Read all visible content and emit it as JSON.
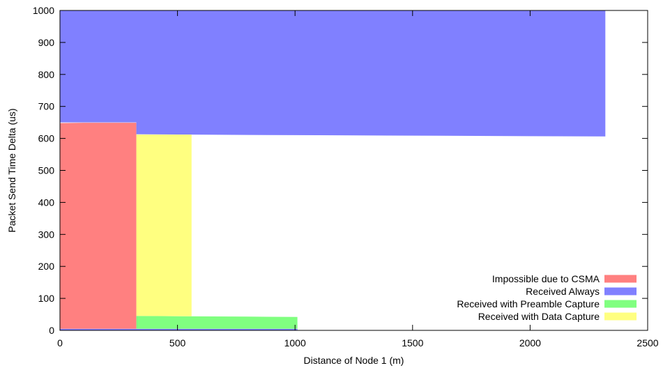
{
  "chart_data": {
    "type": "area",
    "title": "",
    "xlabel": "Distance of Node 1 (m)",
    "ylabel": "Packet Send Time Delta (us)",
    "xlim": [
      0,
      2500
    ],
    "ylim": [
      0,
      1000
    ],
    "x_ticks": [
      0,
      500,
      1000,
      1500,
      2000,
      2500
    ],
    "y_ticks": [
      0,
      100,
      200,
      300,
      400,
      500,
      600,
      700,
      800,
      900,
      1000
    ],
    "grid": false,
    "legend_position": "bottom-right",
    "series": [
      {
        "name": "Impossible due to CSMA",
        "color": "#ff8080",
        "x": [
          0,
          100,
          200,
          325,
          325
        ],
        "y_low": [
          5,
          5,
          5,
          5,
          5
        ],
        "y_high": [
          648,
          649,
          649,
          649,
          649
        ]
      },
      {
        "name": "Received Always",
        "color": "#8080ff",
        "x": [
          0,
          325,
          325,
          560,
          800,
          1100,
          1400,
          1700,
          2000,
          2320
        ],
        "y_low": [
          650,
          650,
          613,
          612,
          611,
          610,
          609,
          608,
          607,
          606
        ],
        "y_high": [
          1000,
          1000,
          1000,
          1000,
          1000,
          1000,
          1000,
          1000,
          1000,
          1000
        ]
      },
      {
        "name": "Received with Preamble Capture",
        "color": "#80ff80",
        "x": [
          325,
          500,
          800,
          1010
        ],
        "y_low": [
          5,
          5,
          5,
          5
        ],
        "y_high": [
          45,
          44,
          43,
          42
        ]
      },
      {
        "name": "Received with Data Capture",
        "color": "#ffff80",
        "x": [
          325,
          560
        ],
        "y_low": [
          45,
          44
        ],
        "y_high": [
          612,
          612
        ]
      }
    ],
    "baseline_series": {
      "color": "#8080ff",
      "x": [
        0,
        1010
      ],
      "y_low": [
        0,
        0
      ],
      "y_high": [
        5,
        5
      ]
    }
  }
}
